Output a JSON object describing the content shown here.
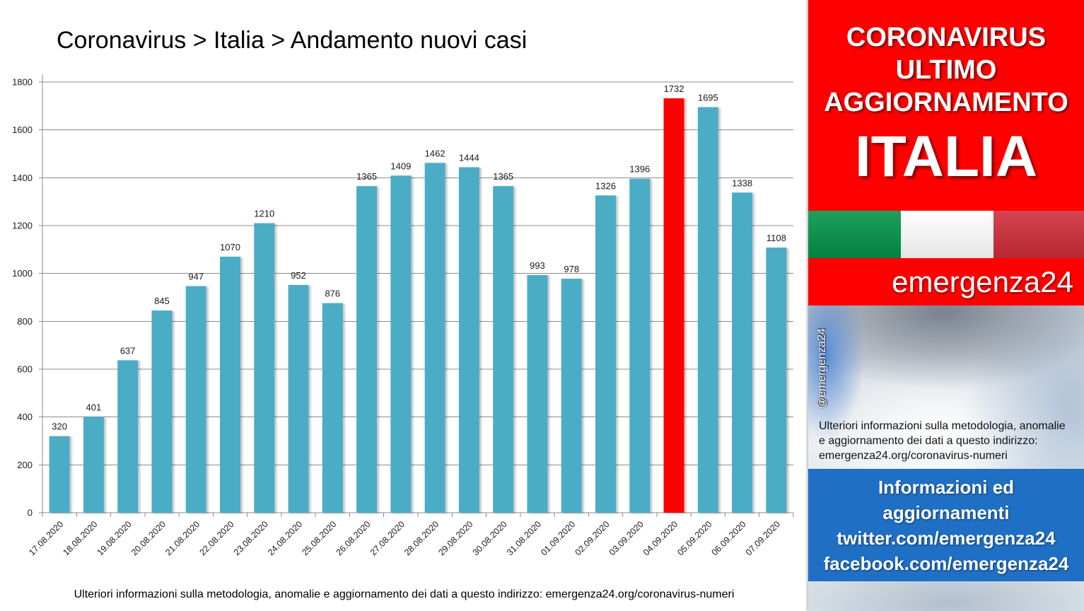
{
  "chart_data": {
    "type": "bar",
    "title": "Coronavirus > Italia > Andamento nuovi casi",
    "categories": [
      "17.08.2020",
      "18.08.2020",
      "19.08.2020",
      "20.08.2020",
      "21.08.2020",
      "22.08.2020",
      "23.08.2020",
      "24.08.2020",
      "25.08.2020",
      "26.08.2020",
      "27.08.2020",
      "28.08.2020",
      "29.08.2020",
      "30.08.2020",
      "31.08.2020",
      "01.09.2020",
      "02.09.2020",
      "03.09.2020",
      "04.09.2020",
      "05.09.2020",
      "06.09.2020",
      "07.09.2020"
    ],
    "values": [
      320,
      401,
      637,
      845,
      947,
      1070,
      1210,
      952,
      876,
      1365,
      1409,
      1462,
      1444,
      1365,
      993,
      978,
      1326,
      1396,
      1732,
      1695,
      1338,
      1108
    ],
    "bar_colors": [
      "#4BACC6",
      "#4BACC6",
      "#4BACC6",
      "#4BACC6",
      "#4BACC6",
      "#4BACC6",
      "#4BACC6",
      "#4BACC6",
      "#4BACC6",
      "#4BACC6",
      "#4BACC6",
      "#4BACC6",
      "#4BACC6",
      "#4BACC6",
      "#4BACC6",
      "#4BACC6",
      "#4BACC6",
      "#4BACC6",
      "#FF0000",
      "#4BACC6",
      "#4BACC6",
      "#4BACC6"
    ],
    "ylim": [
      0,
      1800
    ],
    "yticks": [
      0,
      200,
      400,
      600,
      800,
      1000,
      1200,
      1400,
      1600,
      1800
    ],
    "data_labels": true,
    "grid": true,
    "legend": false
  },
  "footnote": "Ulteriori informazioni sulla metodologia, anomalie e aggiornamento dei dati a questo indirizzo: emergenza24.org/coronavirus-numeri",
  "sidebar": {
    "headline": [
      "CORONAVIRUS",
      "ULTIMO",
      "AGGIORNAMENTO"
    ],
    "country": "ITALIA",
    "brand": "emergenza24",
    "handle": "@emergenza24",
    "note_lines": [
      "Ulteriori informazioni sulla metodologia, anomalie",
      "e aggiornamento dei dati a questo indirizzo:",
      "emergenza24.org/coronavirus-numeri"
    ],
    "info_lines": [
      "Informazioni ed",
      "aggiornamenti",
      "twitter.com/emergenza24",
      "facebook.com/emergenza24"
    ],
    "colors": {
      "banner_red": "#FF0000",
      "info_blue": "#1F6FC5",
      "flag": [
        "#009246",
        "#FFFFFF",
        "#CE2B37"
      ]
    }
  }
}
